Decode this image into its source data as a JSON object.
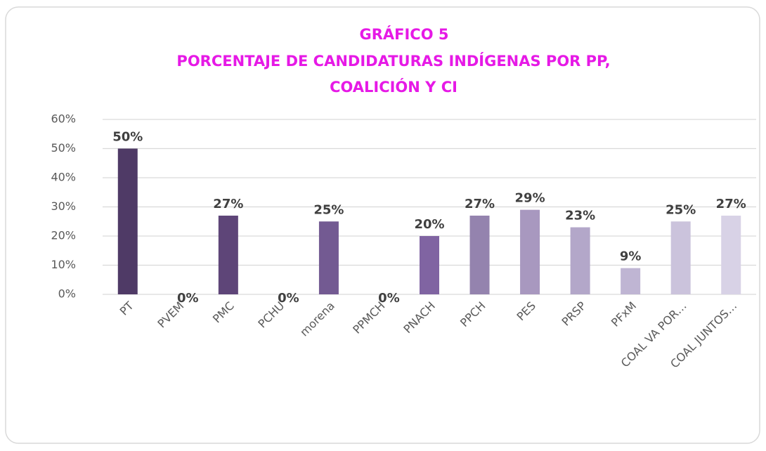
{
  "chart_data": {
    "type": "bar",
    "title": [
      "GRÁFICO 5",
      "PORCENTAJE DE CANDIDATURAS INDÍGENAS POR PP,",
      "COALICIÓN Y CI"
    ],
    "categories": [
      "PT",
      "PVEM",
      "PMC",
      "PCHU",
      "morena",
      "PPMCH",
      "PNACH",
      "PPCH",
      "PES",
      "PRSP",
      "PFxM",
      "COAL VA POR…",
      "COAL JUNTOS…"
    ],
    "values": [
      50,
      0,
      27,
      0,
      25,
      0,
      20,
      27,
      29,
      23,
      9,
      25,
      27
    ],
    "value_labels": [
      "50%",
      "0%",
      "27%",
      "0%",
      "25%",
      "0%",
      "20%",
      "27%",
      "29%",
      "23%",
      "9%",
      "25%",
      "27%"
    ],
    "colors": [
      "#4f3a66",
      "#55406e",
      "#5e4578",
      "#664d83",
      "#735a92",
      "#7a5f9a",
      "#8064a2",
      "#9483ae",
      "#a898bf",
      "#b3a7c9",
      "#bfb5d3",
      "#cbc3dc",
      "#d8d2e6"
    ],
    "ylim": [
      0,
      60
    ],
    "yticks": [
      {
        "value": 0,
        "label": "0%"
      },
      {
        "value": 10,
        "label": "10%"
      },
      {
        "value": 20,
        "label": "20%"
      },
      {
        "value": 30,
        "label": "30%"
      },
      {
        "value": 40,
        "label": "40%"
      },
      {
        "value": 50,
        "label": "50%"
      },
      {
        "value": 60,
        "label": "60%"
      }
    ],
    "grid": true,
    "title_color": "#e619e6"
  }
}
